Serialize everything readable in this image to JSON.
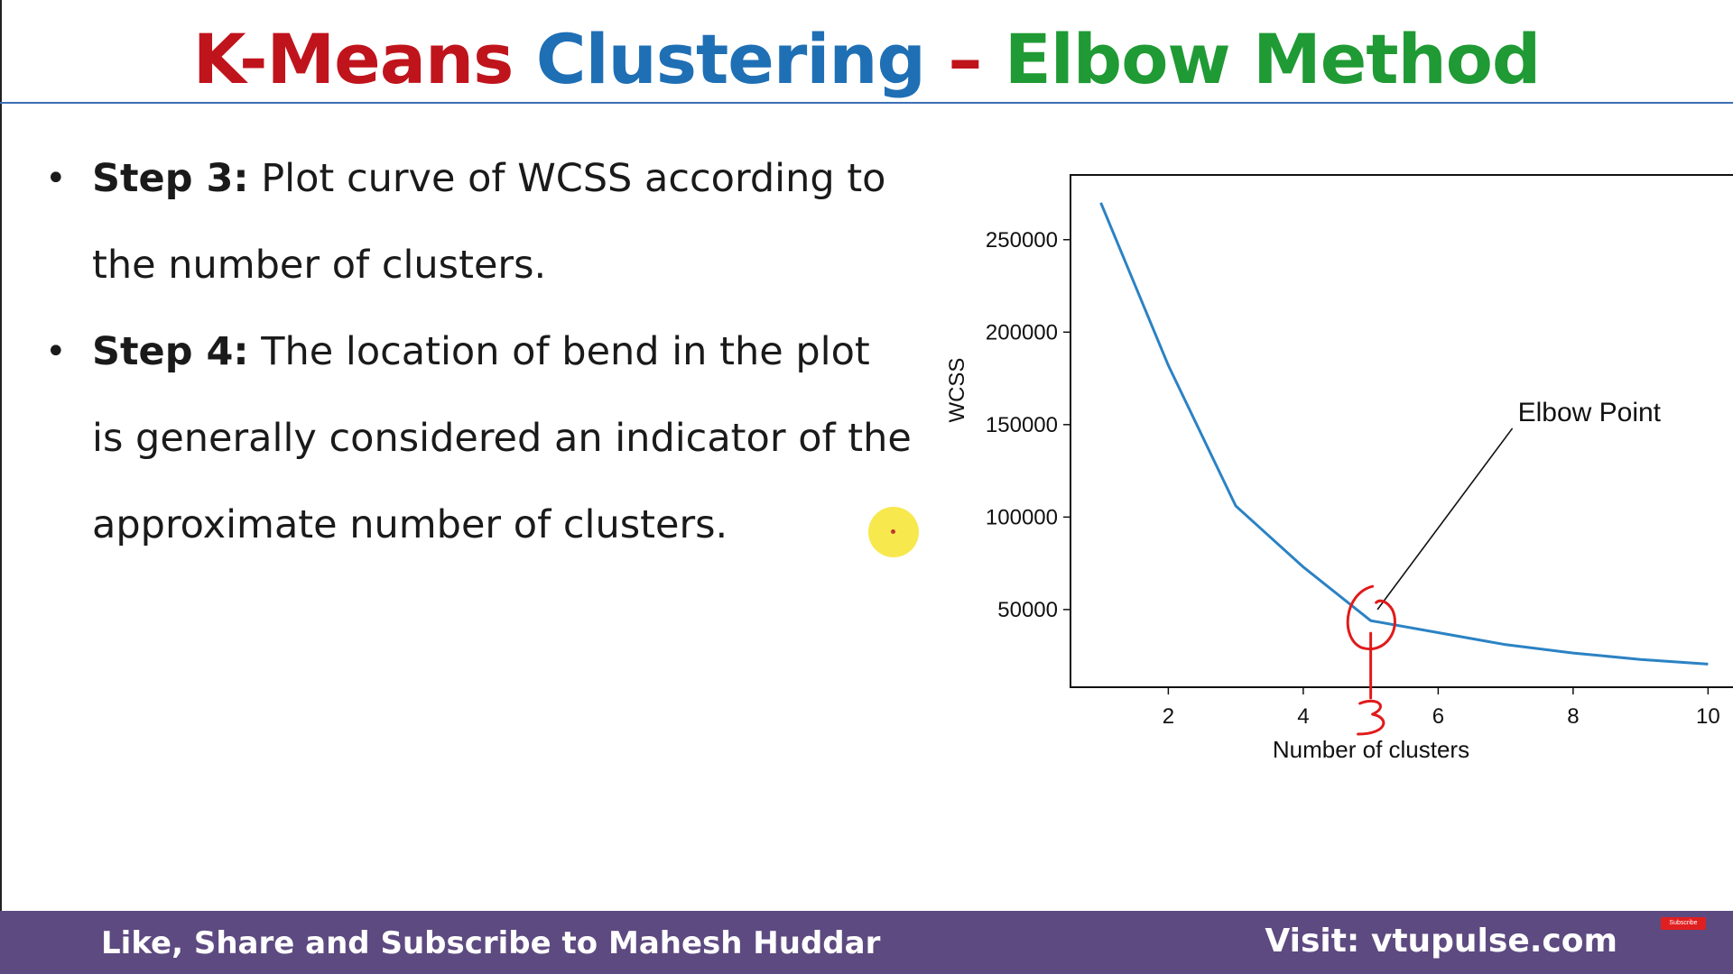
{
  "title": {
    "part1": "K-Means",
    "part2": "Clustering",
    "dash": "–",
    "part3": "Elbow Method",
    "colors": {
      "part1": "#c0141c",
      "part2": "#1f6fb5",
      "dash": "#c0141c",
      "part3": "#1f9a34"
    }
  },
  "bullets": [
    {
      "label": "Step 3:",
      "text": " Plot curve of WCSS according to the number of clusters."
    },
    {
      "label": "Step 4:",
      "text": " The location of bend in the plot is generally considered an indicator of the approximate number of clusters."
    }
  ],
  "chart_data": {
    "type": "line",
    "x": [
      1,
      2,
      3,
      4,
      5,
      6,
      7,
      8,
      9,
      10
    ],
    "values": [
      270000,
      182000,
      106000,
      73000,
      44000,
      37500,
      31000,
      26500,
      23000,
      20500
    ],
    "xlabel": "Number of clusters",
    "ylabel": "WCSS",
    "xticks": [
      2,
      4,
      6,
      8,
      10
    ],
    "yticks": [
      50000,
      100000,
      150000,
      200000,
      250000
    ],
    "xlim": [
      0.55,
      10.45
    ],
    "ylim": [
      8000,
      285000
    ],
    "grid": false,
    "line_color": "#2b82c4",
    "annotation": {
      "text": "Elbow Point",
      "x": 5.1,
      "y": 50000
    },
    "handwritten_mark": "3",
    "mark_color": "#e01b1b"
  },
  "footer": {
    "left": "Like, Share and Subscribe to Mahesh Huddar",
    "right": "Visit: vtupulse.com"
  },
  "subscribe_badge": "Subscribe"
}
